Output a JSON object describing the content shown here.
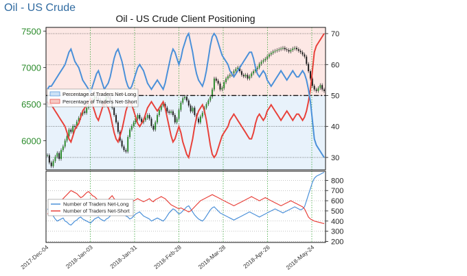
{
  "page": {
    "title": "Oil - US Crude"
  },
  "chart_data": {
    "type": "line",
    "title": "Oil - US Crude Client Positioning",
    "x_tick_labels": [
      "2017-Dec-04",
      "2018-Jan-03",
      "2018-Jan-31",
      "2018-Feb-28",
      "2018-Mar-28",
      "2018-Apr-26",
      "2018-May-24"
    ],
    "price_axis": {
      "ticks": [
        "7500",
        "7000",
        "6500",
        "6000"
      ],
      "range": [
        5600,
        7550
      ],
      "color": "#2a8a2a"
    },
    "percent_axis": {
      "ticks": [
        "70",
        "60",
        "50",
        "40",
        "30"
      ],
      "range": [
        26,
        72
      ]
    },
    "count_axis": {
      "ticks": [
        "800",
        "700",
        "600",
        "500",
        "400",
        "300",
        "200"
      ],
      "range": [
        190,
        890
      ]
    },
    "legend_top": [
      {
        "label": "Percentage of Traders Net-Long",
        "color": "#4a90d9"
      },
      {
        "label": "Percentage of Traders Net-Short",
        "color": "#e8413a"
      }
    ],
    "legend_bottom": [
      {
        "label": "Number of Traders Net-Long",
        "color": "#4a90d9"
      },
      {
        "label": "Number of Traders Net-Short",
        "color": "#e8413a"
      }
    ],
    "reference_line": 50,
    "series": [
      {
        "name": "Percentage of Traders Net-Short",
        "axis": "percent",
        "color": "#e8413a",
        "values": [
          48,
          47,
          47,
          46,
          45,
          44,
          43,
          42,
          41,
          40,
          38,
          36,
          35,
          37,
          39,
          40,
          41,
          43,
          45,
          46,
          47,
          48,
          49,
          47,
          45,
          43,
          42,
          44,
          46,
          48,
          47,
          46,
          44,
          41,
          38,
          36,
          35,
          37,
          39,
          42,
          45,
          47,
          48,
          47,
          45,
          43,
          41,
          40,
          41,
          42,
          44,
          46,
          47,
          48,
          47,
          46,
          45,
          46,
          47,
          48,
          46,
          43,
          40,
          37,
          35,
          36,
          38,
          40,
          38,
          35,
          33,
          31,
          30,
          33,
          36,
          40,
          43,
          45,
          46,
          47,
          45,
          42,
          38,
          34,
          31,
          30,
          31,
          33,
          35,
          37,
          38,
          39,
          40,
          42,
          43,
          44,
          43,
          42,
          41,
          40,
          39,
          38,
          37,
          36,
          36,
          38,
          41,
          43,
          44,
          43,
          42,
          43,
          45,
          46,
          47,
          46,
          45,
          44,
          43,
          42,
          43,
          44,
          45,
          44,
          43,
          42,
          43,
          44,
          44,
          43,
          42,
          43,
          45,
          48,
          52,
          58,
          64,
          66,
          67,
          68,
          69,
          70
        ]
      },
      {
        "name": "Percentage of Traders Net-Long",
        "axis": "percent",
        "color": "#4a90d9",
        "values": [
          52,
          53,
          53,
          54,
          55,
          56,
          57,
          58,
          59,
          60,
          62,
          64,
          65,
          63,
          61,
          60,
          59,
          57,
          55,
          54,
          53,
          52,
          51,
          53,
          55,
          57,
          58,
          56,
          54,
          52,
          53,
          54,
          56,
          59,
          62,
          64,
          65,
          63,
          61,
          58,
          55,
          53,
          52,
          53,
          55,
          57,
          59,
          60,
          59,
          58,
          56,
          54,
          53,
          52,
          53,
          54,
          55,
          54,
          53,
          52,
          54,
          57,
          60,
          63,
          65,
          64,
          62,
          60,
          62,
          65,
          67,
          69,
          70,
          67,
          64,
          60,
          57,
          55,
          54,
          53,
          55,
          58,
          62,
          66,
          69,
          70,
          69,
          67,
          65,
          63,
          62,
          61,
          60,
          58,
          57,
          56,
          57,
          58,
          59,
          60,
          61,
          62,
          63,
          64,
          64,
          62,
          59,
          57,
          56,
          57,
          58,
          57,
          55,
          54,
          53,
          54,
          55,
          56,
          57,
          58,
          57,
          56,
          55,
          56,
          57,
          58,
          57,
          56,
          56,
          57,
          58,
          57,
          55,
          52,
          48,
          42,
          36,
          34,
          33,
          32,
          31,
          30
        ]
      },
      {
        "name": "US Crude Price",
        "axis": "price",
        "color": "#1f1f1f",
        "values": [
          5800,
          5700,
          5650,
          5720,
          5780,
          5830,
          5750,
          5870,
          5920,
          6000,
          6060,
          6150,
          6120,
          6200,
          6190,
          6260,
          6310,
          6360,
          6400,
          6380,
          6450,
          6490,
          6520,
          6560,
          6600,
          6580,
          6560,
          6520,
          6480,
          6550,
          6600,
          6590,
          6540,
          6450,
          6350,
          6250,
          6120,
          6000,
          5920,
          5870,
          5850,
          6050,
          6150,
          6200,
          6250,
          6300,
          6350,
          6300,
          6250,
          6280,
          6310,
          6350,
          6300,
          6200,
          6150,
          6250,
          6350,
          6420,
          6480,
          6500,
          6450,
          6400,
          6380,
          6400,
          6350,
          6250,
          6300,
          6420,
          6520,
          6580,
          6600,
          6550,
          6480,
          6400,
          6450,
          6350,
          6300,
          6250,
          6330,
          6380,
          6450,
          6500,
          6550,
          6600,
          6700,
          6850,
          6820,
          6780,
          6700,
          6720,
          6800,
          6850,
          6880,
          6900,
          6920,
          6950,
          6980,
          7000,
          6950,
          6900,
          6880,
          6900,
          6850,
          6880,
          6920,
          6950,
          6980,
          7000,
          7050,
          7080,
          7100,
          7120,
          7150,
          7180,
          7200,
          7220,
          7230,
          7240,
          7250,
          7260,
          7270,
          7250,
          7240,
          7220,
          7240,
          7260,
          7270,
          7250,
          7230,
          7210,
          7180,
          7150,
          7050,
          6950,
          6850,
          6750,
          6700,
          6680,
          6720,
          6760,
          6700,
          6680
        ]
      },
      {
        "name": "Number of Traders Net-Long",
        "axis": "count",
        "color": "#4a90d9",
        "values": [
          520,
          500,
          480,
          450,
          420,
          400,
          410,
          420,
          430,
          400,
          390,
          370,
          360,
          380,
          400,
          410,
          430,
          440,
          420,
          410,
          400,
          390,
          380,
          400,
          420,
          430,
          440,
          420,
          410,
          400,
          420,
          430,
          450,
          480,
          510,
          530,
          540,
          520,
          500,
          470,
          450,
          440,
          420,
          430,
          450,
          470,
          480,
          490,
          470,
          450,
          440,
          430,
          420,
          400,
          410,
          420,
          430,
          420,
          410,
          400,
          420,
          450,
          480,
          500,
          520,
          510,
          490,
          470,
          480,
          500,
          520,
          540,
          550,
          520,
          490,
          460,
          440,
          420,
          410,
          400,
          420,
          450,
          480,
          510,
          530,
          540,
          520,
          500,
          480,
          470,
          460,
          450,
          440,
          430,
          420,
          410,
          420,
          430,
          440,
          450,
          460,
          470,
          480,
          490,
          480,
          470,
          460,
          450,
          440,
          450,
          460,
          470,
          480,
          490,
          500,
          510,
          520,
          510,
          500,
          490,
          480,
          490,
          500,
          510,
          520,
          530,
          540,
          530,
          520,
          510,
          520,
          540,
          600,
          660,
          720,
          780,
          820,
          840,
          850,
          860,
          870,
          880
        ]
      },
      {
        "name": "Number of Traders Net-Short",
        "axis": "count",
        "color": "#e8413a",
        "values": [
          470,
          480,
          500,
          520,
          540,
          560,
          580,
          600,
          620,
          640,
          660,
          680,
          700,
          690,
          680,
          670,
          650,
          630,
          640,
          660,
          680,
          690,
          670,
          650,
          640,
          620,
          600,
          580,
          560,
          570,
          590,
          610,
          630,
          650,
          620,
          600,
          580,
          560,
          540,
          530,
          520,
          540,
          560,
          580,
          600,
          610,
          620,
          610,
          600,
          590,
          600,
          610,
          620,
          600,
          590,
          610,
          620,
          630,
          640,
          630,
          620,
          600,
          580,
          560,
          550,
          540,
          530,
          520,
          530,
          520,
          510,
          500,
          490,
          500,
          520,
          540,
          560,
          580,
          600,
          610,
          620,
          630,
          640,
          650,
          660,
          650,
          640,
          630,
          620,
          610,
          600,
          590,
          580,
          570,
          560,
          550,
          560,
          570,
          580,
          590,
          600,
          610,
          620,
          630,
          640,
          630,
          620,
          610,
          600,
          610,
          620,
          630,
          620,
          610,
          600,
          590,
          580,
          570,
          560,
          550,
          560,
          570,
          580,
          590,
          600,
          590,
          580,
          570,
          560,
          550,
          540,
          520,
          480,
          440,
          420,
          410,
          400,
          395,
          390,
          385,
          380,
          375
        ]
      }
    ]
  }
}
